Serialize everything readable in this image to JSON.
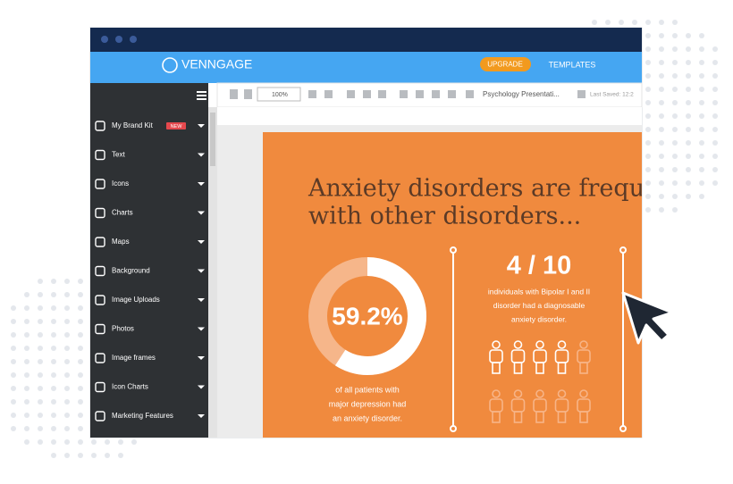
{
  "window": {
    "brand": "VENNGAGE",
    "upgrade": "UPGRADE",
    "templates": "TEMPLATES"
  },
  "toolbar": {
    "zoom": "100%",
    "document": "Psychology Presentati...",
    "last_saved": "Last Saved: 12:2"
  },
  "sidebar": {
    "items": [
      {
        "label": "My Brand Kit",
        "badge": "NEW"
      },
      {
        "label": "Text"
      },
      {
        "label": "Icons"
      },
      {
        "label": "Charts"
      },
      {
        "label": "Maps"
      },
      {
        "label": "Background"
      },
      {
        "label": "Image Uploads"
      },
      {
        "label": "Photos"
      },
      {
        "label": "Image frames"
      },
      {
        "label": "Icon Charts"
      },
      {
        "label": "Marketing Features"
      }
    ]
  },
  "infographic": {
    "title_lines": [
      "Anxiety disorders are frequen",
      "with other disorders..."
    ],
    "stat_1": {
      "value": 59.2,
      "label": "59.2%",
      "caption_lines": [
        "of all patients with",
        "major depression had",
        "an anxiety disorder."
      ]
    },
    "stat_2": {
      "value": 4,
      "total": 10,
      "label": "4 / 10",
      "caption_lines": [
        "individuals with Bipolar I and II",
        "disorder had a diagnosable",
        "anxiety disorder."
      ]
    }
  }
}
